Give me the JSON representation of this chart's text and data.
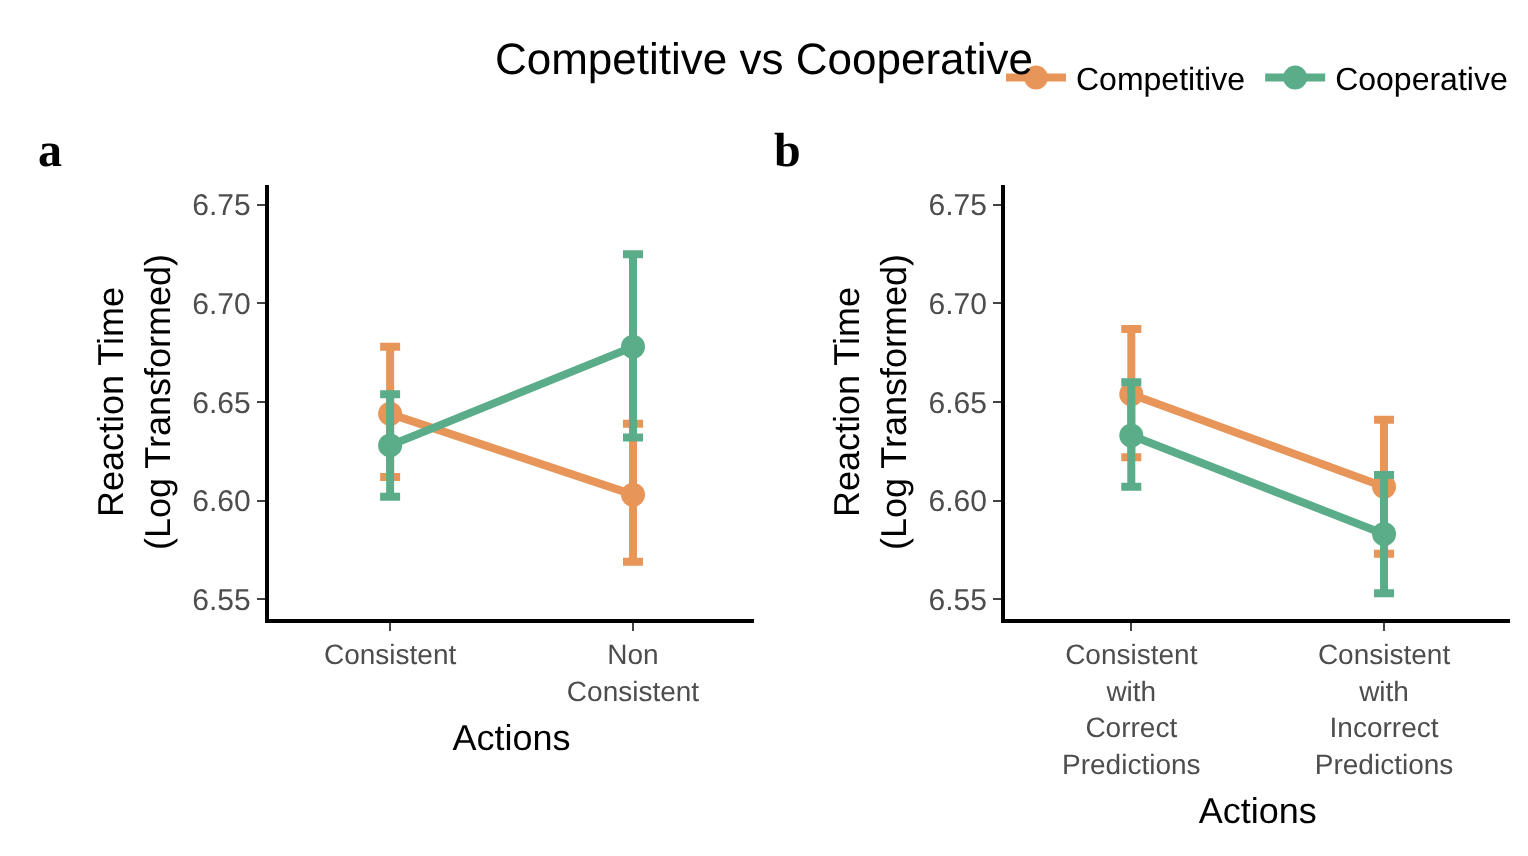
{
  "chart_data": [
    {
      "type": "line",
      "title": "Competitive vs Cooperative",
      "annotations": [
        "a"
      ],
      "xlabel": "Actions",
      "ylabel": "Reaction Time\n(Log Transformed)",
      "categories": [
        "Consistent",
        "Non\nConsistent"
      ],
      "ylim": [
        6.54,
        6.76
      ],
      "yticks": [
        {
          "value": 6.55,
          "label": "6.55"
        },
        {
          "value": 6.6,
          "label": "6.60"
        },
        {
          "value": 6.65,
          "label": "6.65"
        },
        {
          "value": 6.7,
          "label": "6.70"
        },
        {
          "value": 6.75,
          "label": "6.75"
        }
      ],
      "marker": "circle",
      "legend": "top right",
      "series": [
        {
          "name": "Competitive",
          "color": "#e8955a",
          "values": [
            6.644,
            6.603
          ],
          "errors": [
            [
              6.612,
              6.678
            ],
            [
              6.569,
              6.639
            ]
          ]
        },
        {
          "name": "Cooperative",
          "color": "#5aad88",
          "values": [
            6.628,
            6.678
          ],
          "errors": [
            [
              6.602,
              6.654
            ],
            [
              6.632,
              6.725
            ]
          ]
        }
      ]
    },
    {
      "type": "line",
      "annotations": [
        "b"
      ],
      "xlabel": "Actions",
      "ylabel": "Reaction Time\n(Log Transformed)",
      "categories": [
        "Consistent\nwith\nCorrect\nPredictions",
        "Consistent\nwith\nIncorrect\nPredictions"
      ],
      "ylim": [
        6.54,
        6.76
      ],
      "yticks": [
        {
          "value": 6.55,
          "label": "6.55"
        },
        {
          "value": 6.6,
          "label": "6.60"
        },
        {
          "value": 6.65,
          "label": "6.65"
        },
        {
          "value": 6.7,
          "label": "6.70"
        },
        {
          "value": 6.75,
          "label": "6.75"
        }
      ],
      "marker": "circle",
      "series": [
        {
          "color": "#e8955a",
          "values": [
            6.654,
            6.607
          ],
          "errors": [
            [
              6.622,
              6.687
            ],
            [
              6.573,
              6.641
            ]
          ]
        },
        {
          "color": "#5aad88",
          "values": [
            6.633,
            6.583
          ],
          "errors": [
            [
              6.607,
              6.66
            ],
            [
              6.553,
              6.613
            ]
          ]
        }
      ]
    }
  ]
}
